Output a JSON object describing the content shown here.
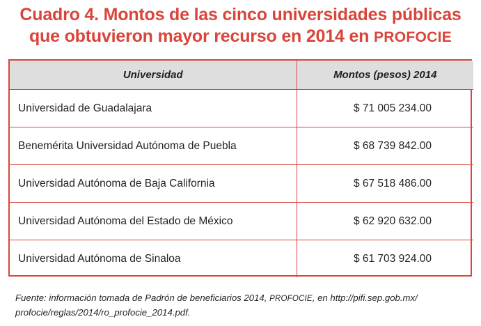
{
  "title": {
    "line1": "Cuadro 4. Montos de las cinco universidades públicas",
    "line2_main": "que obtuvieron mayor recurso en 2014 en ",
    "line2_program": "PROFOCIE"
  },
  "table": {
    "headers": [
      "Universidad",
      "Montos (pesos) 2014"
    ],
    "rows": [
      {
        "university": "Universidad de Guadalajara",
        "amount": "$ 71 005 234.00"
      },
      {
        "university": "Benemérita Universidad Autónoma de Puebla",
        "amount": "$ 68 739 842.00"
      },
      {
        "university": "Universidad Autónoma de Baja California",
        "amount": "$ 67 518 486.00"
      },
      {
        "university": "Universidad Autónoma del Estado de México",
        "amount": "$ 62 920 632.00"
      },
      {
        "university": "Universidad Autónoma de Sinaloa",
        "amount": "$ 61 703 924.00"
      }
    ]
  },
  "source": {
    "line1_a": "Fuente: información tomada de Padrón de beneficiarios 2014, ",
    "line1_program": "PROFOCIE",
    "line1_b": ", en http://pifi.sep.gob.mx/",
    "line2": "profocie/reglas/2014/ro_profocie_2014.pdf."
  }
}
